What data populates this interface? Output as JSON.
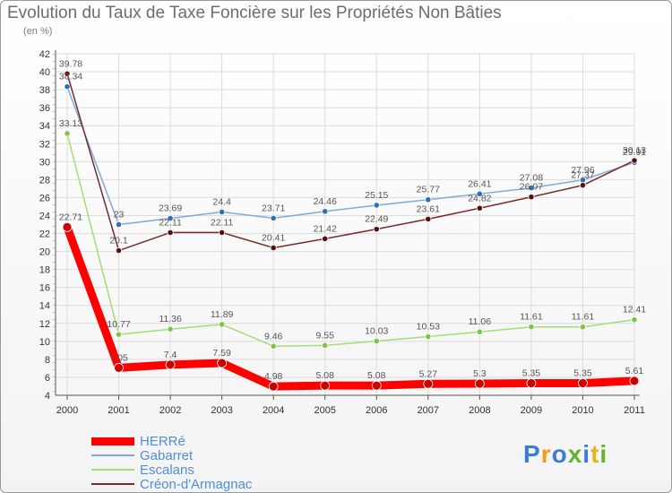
{
  "title": "Evolution du Taux de Taxe Foncière sur les Propriétés Non Bâties",
  "unit_label": "(en %)",
  "logo": {
    "text": "Proxiti",
    "colors": [
      "#3d7bd9",
      "#f29a1f",
      "#3d7bd9",
      "#66b032",
      "#3d7bd9",
      "#e8b41c",
      "#66b032"
    ]
  },
  "chart_data": {
    "type": "line",
    "title": "Evolution du Taux de Taxe Foncière sur les Propriétés Non Bâties",
    "ylabel": "(en %)",
    "xlabel": "",
    "categories": [
      "2000",
      "2001",
      "2002",
      "2003",
      "2004",
      "2005",
      "2006",
      "2007",
      "2008",
      "2009",
      "2010",
      "2011"
    ],
    "ylim": [
      4,
      42
    ],
    "yticks": [
      4,
      6,
      8,
      10,
      12,
      14,
      16,
      18,
      20,
      22,
      24,
      26,
      28,
      30,
      32,
      34,
      36,
      38,
      40,
      42
    ],
    "grid": true,
    "legend_position": "bottom-left",
    "series": [
      {
        "name": "HERRé",
        "color": "#ff0000",
        "width": 9,
        "values": [
          22.71,
          7.05,
          7.4,
          7.59,
          4.98,
          5.08,
          5.08,
          5.27,
          5.3,
          5.35,
          5.35,
          5.61
        ],
        "labels": [
          "22.71",
          "7.05",
          "7.4",
          "7.59",
          "4.98",
          "5.08",
          "5.08",
          "5.27",
          "5.3",
          "5.35",
          "5.35",
          "5.61"
        ]
      },
      {
        "name": "Gabarret",
        "color": "#7eaad8",
        "width": 1.5,
        "values": [
          38.34,
          23,
          23.69,
          24.4,
          23.71,
          24.46,
          25.15,
          25.77,
          26.41,
          27.08,
          27.96,
          29.91
        ],
        "labels": [
          "38.34",
          "23",
          "23.69",
          "24.4",
          "23.71",
          "24.46",
          "25.15",
          "25.77",
          "26.41",
          "27.08",
          "27.96",
          "29.91"
        ]
      },
      {
        "name": "Escalans",
        "color": "#a6dc78",
        "width": 1.5,
        "values": [
          33.13,
          10.77,
          11.36,
          11.89,
          9.46,
          9.55,
          10.03,
          10.53,
          11.06,
          11.61,
          11.61,
          12.41
        ],
        "labels": [
          "33.13",
          "10.77",
          "11.36",
          "11.89",
          "9.46",
          "9.55",
          "10.03",
          "10.53",
          "11.06",
          "11.61",
          "11.61",
          "12.41"
        ]
      },
      {
        "name": "Créon-d'Armagnac",
        "color": "#7a2a2a",
        "width": 1.5,
        "values": [
          39.78,
          20.1,
          22.11,
          22.11,
          20.41,
          21.42,
          22.49,
          23.61,
          24.82,
          26.07,
          27.37,
          30.13
        ],
        "labels": [
          "39.78",
          "20.1",
          "22.11",
          "22.11",
          "20.41",
          "21.42",
          "22.49",
          "23.61",
          "24.82",
          "26.07",
          "27.37",
          "30.13"
        ]
      }
    ]
  }
}
